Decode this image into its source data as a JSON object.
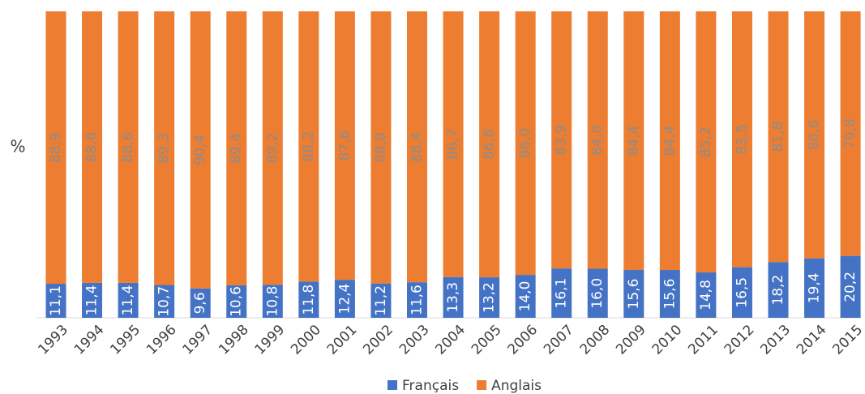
{
  "chart_data": {
    "type": "stacked_bar",
    "y_label": "%",
    "categories": [
      "1993",
      "1994",
      "1995",
      "1996",
      "1997",
      "1998",
      "1999",
      "2000",
      "2001",
      "2002",
      "2003",
      "2004",
      "2005",
      "2006",
      "2007",
      "2008",
      "2009",
      "2010",
      "2011",
      "2012",
      "2013",
      "2014",
      "2015"
    ],
    "ylim": [
      0,
      100
    ],
    "legend": "bottom",
    "series": [
      {
        "name": "Français",
        "color": "#4472c4",
        "label_color": "#ffffff",
        "values": [
          11.1,
          11.4,
          11.4,
          10.7,
          9.6,
          10.6,
          10.8,
          11.8,
          12.4,
          11.2,
          11.6,
          13.3,
          13.2,
          14.0,
          16.1,
          16.0,
          15.6,
          15.6,
          14.8,
          16.5,
          18.2,
          19.4,
          20.2
        ],
        "value_labels": [
          "11,1",
          "11,4",
          "11,4",
          "10,7",
          "9,6",
          "10,6",
          "10,8",
          "11,8",
          "12,4",
          "11,2",
          "11,6",
          "13,3",
          "13,2",
          "14,0",
          "16,1",
          "16,0",
          "15,6",
          "15,6",
          "14,8",
          "16,5",
          "18,2",
          "19,4",
          "20,2"
        ]
      },
      {
        "name": "Anglais",
        "color": "#ed7d31",
        "label_color": "#8c8c8c",
        "values": [
          88.9,
          88.6,
          88.6,
          89.3,
          90.4,
          89.4,
          89.2,
          88.2,
          87.6,
          88.8,
          88.4,
          86.7,
          86.8,
          86.0,
          83.9,
          84.0,
          84.4,
          84.4,
          85.2,
          83.5,
          81.8,
          80.6,
          79.8
        ],
        "value_labels": [
          "88,9",
          "88,6",
          "88,6",
          "89,3",
          "90,4",
          "89,4",
          "89,2",
          "88,2",
          "87,6",
          "88,8",
          "88,4",
          "86,7",
          "86,8",
          "86,0",
          "83,9",
          "84,0",
          "84,4",
          "84,4",
          "85,2",
          "83,5",
          "81,8",
          "80,6",
          "79,8"
        ]
      }
    ]
  }
}
